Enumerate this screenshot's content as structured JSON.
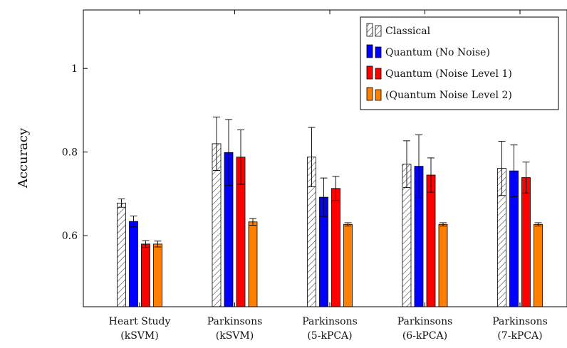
{
  "chart_data": {
    "type": "bar",
    "title": "",
    "xlabel": "",
    "ylabel": "Accuracy",
    "ylim": [
      0.43,
      1.14
    ],
    "yticks": [
      0.6,
      0.8,
      1
    ],
    "ytick_labels": [
      "0.6",
      "0.8",
      "1"
    ],
    "grid": false,
    "legend_position": "top-right",
    "categories": [
      [
        "Heart Study",
        "(kSVM)"
      ],
      [
        "Parkinsons",
        "(kSVM)"
      ],
      [
        "Parkinsons",
        "(5-kPCA)"
      ],
      [
        "Parkinsons",
        "(6-kPCA)"
      ],
      [
        "Parkinsons",
        "(7-kPCA)"
      ]
    ],
    "series": [
      {
        "name": "Classical",
        "color": "#ffffff",
        "pattern": "hatch",
        "values": [
          0.678,
          0.82,
          0.788,
          0.771,
          0.761
        ],
        "errors": [
          0.01,
          0.064,
          0.071,
          0.056,
          0.065
        ]
      },
      {
        "name": "Quantum (No Noise)",
        "color": "#0000ff",
        "pattern": "solid",
        "values": [
          0.634,
          0.799,
          0.692,
          0.766,
          0.755
        ],
        "errors": [
          0.013,
          0.079,
          0.046,
          0.075,
          0.062
        ]
      },
      {
        "name": "Quantum (Noise Level 1)",
        "color": "#ff0000",
        "pattern": "solid",
        "values": [
          0.58,
          0.788,
          0.713,
          0.745,
          0.739
        ],
        "errors": [
          0.008,
          0.065,
          0.029,
          0.041,
          0.037
        ]
      },
      {
        "name": "(Quantum Noise Level 2)",
        "color": "#ff8000",
        "pattern": "solid",
        "values": [
          0.58,
          0.633,
          0.627,
          0.627,
          0.627
        ],
        "errors": [
          0.007,
          0.008,
          0.004,
          0.004,
          0.004
        ]
      }
    ]
  }
}
